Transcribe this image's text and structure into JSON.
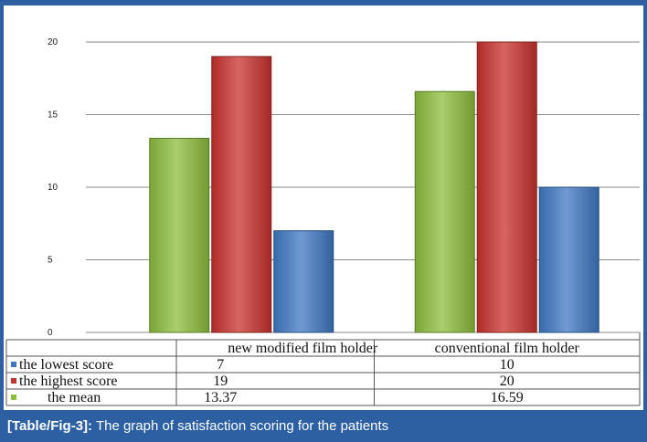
{
  "caption": {
    "label": "[Table/Fig-3]:",
    "text": " The graph of satisfaction scoring for the patients"
  },
  "chart_data": {
    "type": "bar",
    "title": "",
    "xlabel": "",
    "ylabel": "",
    "ylim": [
      0,
      20
    ],
    "yticks": [
      0,
      5,
      10,
      15,
      20
    ],
    "grid": true,
    "categories": [
      "new modified film holder",
      "conventional film holder"
    ],
    "series": [
      {
        "name": "the mean",
        "values": [
          13.37,
          16.59
        ],
        "color": "#8cbd3c"
      },
      {
        "name": "the highest score",
        "values": [
          19,
          20
        ],
        "color": "#c8322e"
      },
      {
        "name": "the lowest score",
        "values": [
          7,
          10
        ],
        "color": "#3f78c2"
      }
    ],
    "table": {
      "row_order": [
        "the lowest score",
        "the highest score",
        "the mean"
      ],
      "rows": [
        {
          "label": "the lowest score",
          "color": "#3f78c2",
          "values": [
            "7",
            "10"
          ]
        },
        {
          "label": "the highest score",
          "color": "#c8322e",
          "values": [
            "19",
            "20"
          ]
        },
        {
          "label": "the mean",
          "color": "#8cbd3c",
          "values": [
            "13.37",
            "16.59"
          ]
        }
      ]
    }
  }
}
